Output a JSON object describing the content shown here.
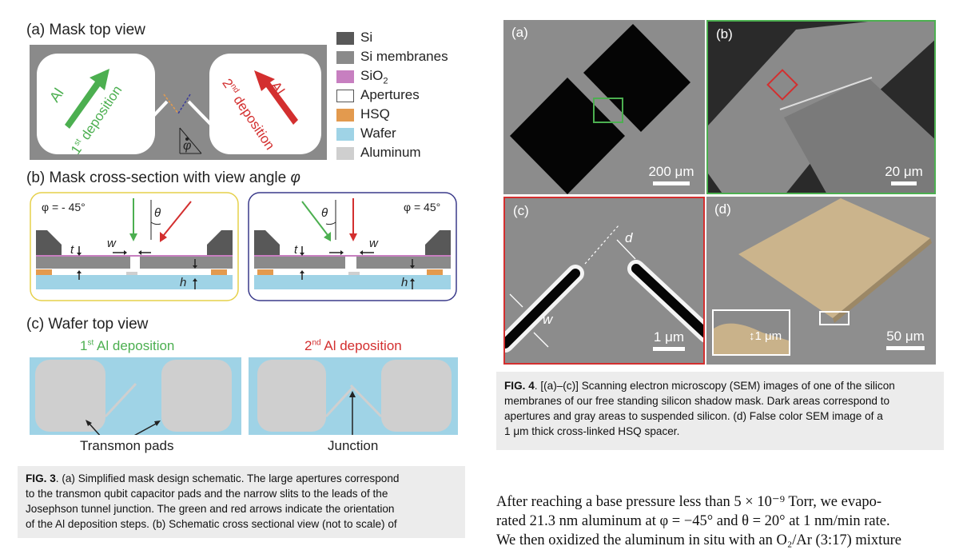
{
  "fig3": {
    "a_title": "(a)  Mask top view",
    "b_title_prefix": "(b)  Mask cross-section with view angle ",
    "b_title_sym": "φ",
    "c_title": "(c)  Wafer top view",
    "a_left_arrow_label": "Al",
    "a_left_dep": "1",
    "a_left_dep_sup": "st",
    "a_left_dep_rest": " deposition",
    "a_right_arrow_label": "Al",
    "a_right_dep": "2",
    "a_right_dep_sup": "nd",
    "a_right_dep_rest": " deposition",
    "a_phi": "φ",
    "legend": [
      {
        "label": "Si",
        "color": "#585858"
      },
      {
        "label": "Si membranes",
        "color": "#8a8a8a"
      },
      {
        "label": "SiO",
        "sub": "2",
        "color": "#c77fc0"
      },
      {
        "label": "Apertures",
        "color": "#ffffff"
      },
      {
        "label": "HSQ",
        "color": "#e39a4e"
      },
      {
        "label": "Wafer",
        "color": "#9fd3e6"
      },
      {
        "label": "Aluminum",
        "color": "#cfcfcf"
      }
    ],
    "b_left_phi": "φ = - 45°",
    "b_right_phi": "φ = 45°",
    "b_theta": "θ",
    "b_w": "w",
    "b_t": "t",
    "b_h": "h",
    "c_left_title": "1",
    "c_left_title_sup": "st",
    "c_left_title_rest": " Al deposition",
    "c_right_title": "2",
    "c_right_title_sup": "nd",
    "c_right_title_rest": " Al deposition",
    "c_left_label": "Transmon pads",
    "c_right_label": "Junction",
    "caption_bold": "FIG. 3",
    "caption_lines": [
      ". (a) Simplified mask design schematic. The large apertures correspond",
      "to the transmon qubit capacitor pads and the narrow slits to the leads of the",
      "Josephson tunnel junction. The green and red arrows indicate the orientation",
      "of the Al deposition steps. (b) Schematic cross sectional view (not to scale) of"
    ]
  },
  "fig4": {
    "panels": [
      {
        "label": "(a)",
        "scale": "200 μm"
      },
      {
        "label": "(b)",
        "scale": "20 μm"
      },
      {
        "label": "(c)",
        "scale": "1 μm",
        "d": "d",
        "w": "w"
      },
      {
        "label": "(d)",
        "scale": "50 μm",
        "inset": "1 μm"
      }
    ],
    "colors": {
      "green_frame": "#4caf50",
      "red_frame": "#d32f2f"
    },
    "caption_bold": "FIG. 4",
    "caption_lines": [
      ". [(a)–(c)] Scanning electron microscopy (SEM) images of one of the silicon",
      "membranes of our free standing silicon shadow mask. Dark areas correspond to",
      "apertures and gray areas to suspended silicon. (d) False color SEM image of a",
      "1 μm thick cross-linked HSQ spacer."
    ]
  },
  "body_lines": [
    "After reaching a base pressure less than 5 × 10⁻⁹ Torr, we evapo-",
    "rated 21.3 nm aluminum at φ = −45° and θ = 20° at 1 nm/min rate.",
    "We then oxidized the aluminum in situ with an O₂/Ar (3:17) mixture"
  ]
}
